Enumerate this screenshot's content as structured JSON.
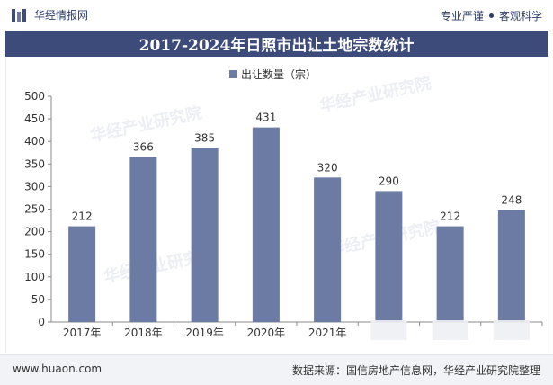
{
  "brand": {
    "name": "华经情报网",
    "icon": "hj-logo-icon"
  },
  "motto": {
    "left": "专业严谨",
    "right": "客观科学"
  },
  "title": "2017-2024年日照市出让土地宗数统计",
  "footer": {
    "url": "www.huaon.com",
    "source": "数据来源：国信房地产信息网，华经产业研究院整理"
  },
  "watermark": "华经产业研究院",
  "colors": {
    "bar": "#6b7ba4",
    "header_bg": "#3d4b7a",
    "text": "#333333"
  },
  "chart_data": {
    "type": "bar",
    "categories": [
      "2017年",
      "2018年",
      "2019年",
      "2020年",
      "2021年",
      "",
      "",
      ""
    ],
    "series": [
      {
        "name": "出让数量（宗）",
        "values": [
          212,
          366,
          385,
          431,
          320,
          290,
          212,
          248
        ]
      }
    ],
    "ylim": [
      0,
      500
    ],
    "yticks": [
      0,
      50,
      100,
      150,
      200,
      250,
      300,
      350,
      400,
      450,
      500
    ],
    "legend": "top-center",
    "grid": false,
    "data_labels": true
  }
}
